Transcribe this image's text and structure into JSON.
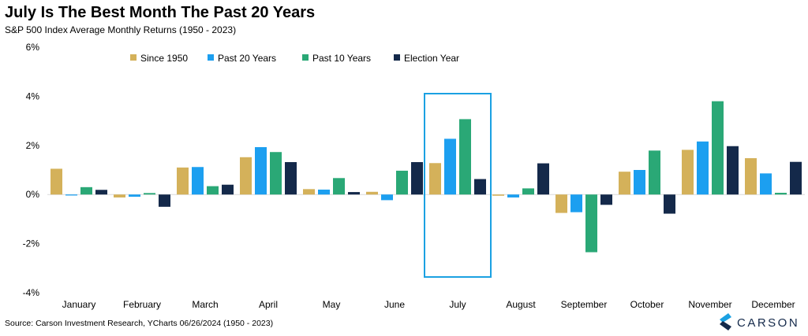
{
  "title": "July Is The Best Month The Past 20 Years",
  "subtitle": "S&P 500 Index Average Monthly Returns (1950 - 2023)",
  "source": "Source: Carson Investment Research, YCharts 06/26/2024 (1950 - 2023)",
  "brand": {
    "name": "CARSON",
    "icon": "carson-logo-icon"
  },
  "highlight": {
    "category": "July",
    "color": "#1ba1e2"
  },
  "chart_data": {
    "type": "bar",
    "categories": [
      "January",
      "February",
      "March",
      "April",
      "May",
      "June",
      "July",
      "August",
      "September",
      "October",
      "November",
      "December"
    ],
    "ylim": [
      -4,
      6
    ],
    "yticks": [
      6,
      4,
      2,
      0,
      -2,
      -4
    ],
    "ytick_labels": [
      "6%",
      "4%",
      "2%",
      "0%",
      "-2%",
      "-4%"
    ],
    "grid": false,
    "legend_position": "top",
    "series": [
      {
        "name": "Since 1950",
        "color": "#d4b15a",
        "values": [
          1.05,
          -0.12,
          1.1,
          1.52,
          0.22,
          0.11,
          1.28,
          -0.05,
          -0.75,
          0.93,
          1.82,
          1.48
        ]
      },
      {
        "name": "Past 20 Years",
        "color": "#1c9ff0",
        "values": [
          -0.04,
          -0.09,
          1.12,
          1.93,
          0.2,
          -0.23,
          2.27,
          -0.12,
          -0.72,
          1.0,
          2.16,
          0.86
        ]
      },
      {
        "name": "Past 10 Years",
        "color": "#2aa876",
        "values": [
          0.3,
          0.06,
          0.34,
          1.73,
          0.67,
          0.97,
          3.07,
          0.25,
          -2.35,
          1.79,
          3.8,
          0.07
        ]
      },
      {
        "name": "Election Year",
        "color": "#14294a",
        "values": [
          0.19,
          -0.5,
          0.4,
          1.32,
          0.1,
          1.32,
          0.63,
          1.27,
          -0.42,
          -0.78,
          1.97,
          1.33
        ]
      }
    ]
  }
}
